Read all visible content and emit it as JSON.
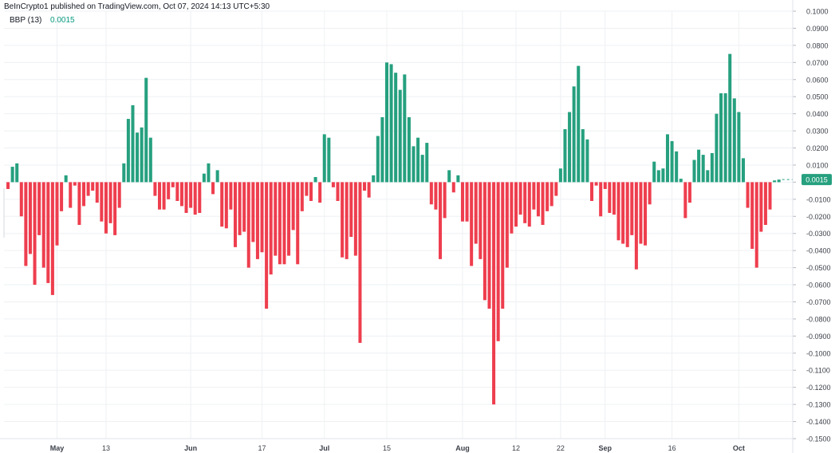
{
  "header": {
    "publisher_line": "BeInCrypto1 published on TradingView.com, Oct 07, 2024 14:13 UTC+5:30"
  },
  "indicator": {
    "name": "BBP (13)",
    "value": "0.0015"
  },
  "colors": {
    "positive": "#26a07f",
    "negative": "#ee3e4e",
    "grid": "#eef0f3",
    "axis_text": "#3b3f48",
    "price_tag_bg": "#26a07f"
  },
  "chart_data": {
    "type": "bar",
    "title": "",
    "xlabel": "",
    "ylabel": "",
    "ylim": [
      -0.15,
      0.1
    ],
    "y_ticks": [
      "0.1000",
      "0.0900",
      "0.0800",
      "0.0700",
      "0.0600",
      "0.0500",
      "0.0400",
      "0.0300",
      "0.0200",
      "0.0100",
      "0.0000",
      "-0.0100",
      "-0.0200",
      "-0.0300",
      "-0.0400",
      "-0.0500",
      "-0.0600",
      "-0.0700",
      "-0.0800",
      "-0.0900",
      "-0.1000",
      "-0.1100",
      "-0.1200",
      "-0.1300",
      "-0.1400",
      "-0.1500"
    ],
    "x_ticks": [
      {
        "label": "May",
        "bar_index": 11,
        "bold": true
      },
      {
        "label": "13",
        "bar_index": 22,
        "bold": false
      },
      {
        "label": "Jun",
        "bar_index": 41,
        "bold": true
      },
      {
        "label": "17",
        "bar_index": 57,
        "bold": false
      },
      {
        "label": "Jul",
        "bar_index": 71,
        "bold": true
      },
      {
        "label": "15",
        "bar_index": 85,
        "bold": false
      },
      {
        "label": "Aug",
        "bar_index": 102,
        "bold": true
      },
      {
        "label": "12",
        "bar_index": 114,
        "bold": false
      },
      {
        "label": "22",
        "bar_index": 124,
        "bold": false
      },
      {
        "label": "Sep",
        "bar_index": 134,
        "bold": true
      },
      {
        "label": "16",
        "bar_index": 149,
        "bold": false
      },
      {
        "label": "Oct",
        "bar_index": 164,
        "bold": true
      }
    ],
    "current_value_label": "0.0015",
    "current_value": 0.0015,
    "values": [
      -0.004,
      0.009,
      0.011,
      -0.02,
      -0.049,
      -0.042,
      -0.06,
      -0.031,
      -0.05,
      -0.059,
      -0.066,
      -0.037,
      -0.017,
      0.004,
      -0.015,
      -0.002,
      -0.025,
      -0.014,
      -0.008,
      -0.005,
      -0.012,
      -0.023,
      -0.03,
      -0.024,
      -0.031,
      -0.015,
      0.011,
      0.037,
      0.045,
      0.029,
      0.032,
      0.061,
      0.026,
      -0.008,
      -0.016,
      -0.016,
      -0.01,
      -0.003,
      -0.011,
      -0.014,
      -0.018,
      -0.015,
      -0.019,
      -0.018,
      0.005,
      0.011,
      -0.007,
      0.007,
      -0.026,
      -0.027,
      -0.016,
      -0.038,
      -0.031,
      -0.029,
      -0.05,
      -0.035,
      -0.045,
      -0.041,
      -0.074,
      -0.054,
      -0.043,
      -0.048,
      -0.048,
      -0.043,
      -0.028,
      -0.048,
      -0.017,
      -0.008,
      -0.011,
      0.003,
      -0.012,
      0.028,
      0.026,
      -0.003,
      -0.011,
      -0.044,
      -0.045,
      -0.032,
      -0.043,
      -0.094,
      -0.005,
      -0.009,
      0.004,
      0.027,
      0.038,
      0.07,
      0.069,
      0.064,
      0.054,
      0.063,
      0.038,
      0.021,
      0.026,
      0.016,
      0.023,
      -0.013,
      -0.016,
      -0.045,
      -0.021,
      0.007,
      -0.006,
      0.004,
      -0.023,
      -0.023,
      -0.049,
      -0.036,
      -0.045,
      -0.069,
      -0.074,
      -0.13,
      -0.093,
      -0.074,
      -0.05,
      -0.03,
      -0.026,
      -0.019,
      -0.024,
      -0.026,
      -0.016,
      -0.02,
      -0.025,
      -0.017,
      -0.014,
      -0.008,
      0.008,
      0.031,
      0.041,
      0.056,
      0.068,
      0.031,
      0.025,
      -0.011,
      -0.002,
      -0.02,
      -0.004,
      -0.018,
      -0.019,
      -0.034,
      -0.036,
      -0.038,
      -0.031,
      -0.051,
      -0.036,
      -0.037,
      -0.013,
      0.012,
      0.007,
      0.008,
      0.028,
      0.024,
      0.018,
      0.002,
      -0.021,
      -0.012,
      0.013,
      0.019,
      0.016,
      0.007,
      0.017,
      0.04,
      0.052,
      0.052,
      0.075,
      0.049,
      0.041,
      0.014,
      -0.015,
      -0.039,
      -0.05,
      -0.029,
      -0.025,
      -0.016,
      0.001,
      0.0015
    ]
  }
}
